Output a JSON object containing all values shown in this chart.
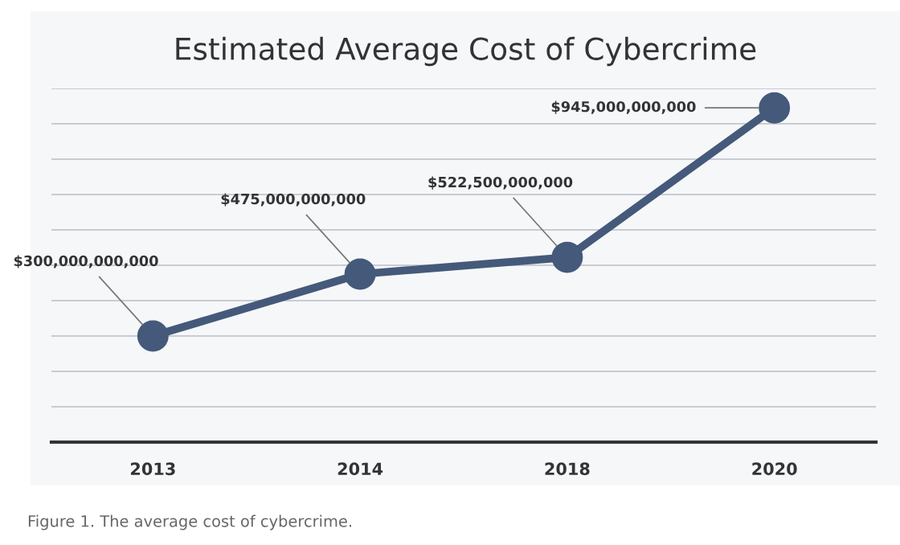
{
  "chart_data": {
    "type": "line",
    "title": "Estimated Average Cost of Cybercrime",
    "categories": [
      "2013",
      "2014",
      "2018",
      "2020"
    ],
    "series": [
      {
        "color": "#45597a",
        "values": [
          300000000000,
          475000000000,
          522500000000,
          945000000000
        ],
        "value_labels": [
          "$300,000,000,000",
          "$475,000,000,000",
          "$522,500,000,000",
          "$945,000,000,000"
        ]
      }
    ],
    "ylim": [
      0,
      1000000000000
    ],
    "yticks": [
      {
        "value": 0,
        "label": null
      },
      {
        "value": 100000000000,
        "label": null
      },
      {
        "value": 200000000000,
        "label": null
      },
      {
        "value": 300000000000,
        "label": null
      },
      {
        "value": 400000000000,
        "label": null
      },
      {
        "value": 500000000000,
        "label": null
      },
      {
        "value": 600000000000,
        "label": null
      },
      {
        "value": 700000000000,
        "label": null
      },
      {
        "value": 800000000000,
        "label": null
      },
      {
        "value": 900000000000,
        "label": null
      },
      {
        "value": 1000000000000,
        "label": null
      }
    ],
    "grid": "y",
    "tick_labels": "x",
    "marker": "circle",
    "line_style": "solid",
    "legend": false,
    "annotations": [
      "Figure 1. The average cost of cybercrime."
    ]
  }
}
